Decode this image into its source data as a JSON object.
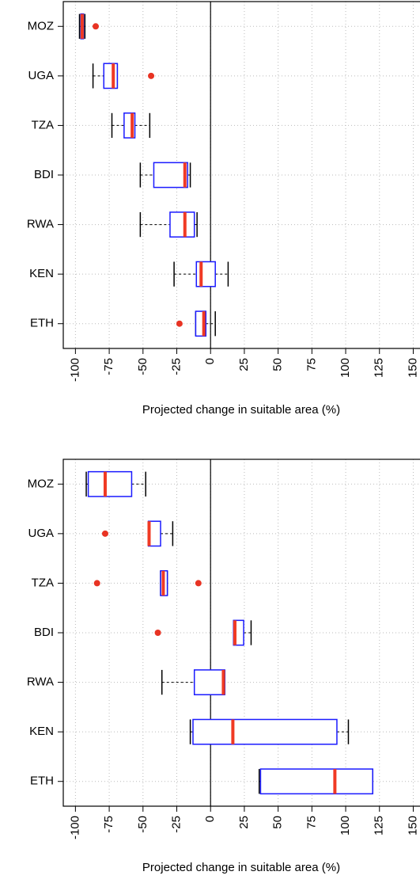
{
  "chart_data": [
    {
      "type": "boxplot",
      "x_label": "Projected change in suitable area (%)",
      "categories": [
        "MOZ",
        "UGA",
        "TZA",
        "BDI",
        "RWA",
        "KEN",
        "ETH"
      ],
      "low": [
        -97,
        -87,
        -73,
        -52,
        -52,
        -27,
        -11
      ],
      "q1": [
        -96,
        -79,
        -64,
        -42,
        -30,
        -10.5,
        -11
      ],
      "median": [
        -95,
        -72,
        -58,
        -19,
        -19,
        -7,
        -5
      ],
      "q3": [
        -94,
        -69,
        -56,
        -17,
        -12,
        3.5,
        -3.5
      ],
      "high": [
        -93,
        -69,
        -45,
        -15,
        -10,
        13,
        3.5
      ],
      "outliers": [
        [
          -85
        ],
        [
          -44
        ],
        [],
        [],
        [],
        [],
        [
          -23
        ]
      ],
      "box_color": "#1a1aff",
      "median_color": "#f03a24",
      "outlier_color": "#e83323",
      "xlim": [
        -109,
        155
      ],
      "xticks": [
        -100,
        -75,
        -50,
        -25,
        0,
        25,
        50,
        75,
        100,
        125,
        150
      ],
      "grid": true
    },
    {
      "type": "boxplot",
      "x_label": "Projected change in suitable area (%)",
      "categories": [
        "MOZ",
        "UGA",
        "TZA",
        "BDI",
        "RWA",
        "KEN",
        "ETH"
      ],
      "low": [
        -92,
        -46,
        -37,
        17,
        -36,
        -15,
        36
      ],
      "q1": [
        -90.5,
        -46,
        -37,
        17,
        -12,
        -13,
        37
      ],
      "median": [
        -78,
        -45.5,
        -35,
        18,
        9.5,
        16.5,
        92
      ],
      "q3": [
        -58.4,
        -37,
        -32,
        24.5,
        10.5,
        93.5,
        120
      ],
      "high": [
        -48,
        -28,
        -32,
        30,
        10.5,
        102,
        120
      ],
      "outliers": [
        [],
        [
          -78
        ],
        [
          -84,
          -9
        ],
        [
          -39
        ],
        [],
        [],
        []
      ],
      "box_color": "#1a1aff",
      "median_color": "#f03a24",
      "outlier_color": "#e83323",
      "xlim": [
        -109,
        155
      ],
      "xticks": [
        -100,
        -75,
        -50,
        -25,
        0,
        25,
        50,
        75,
        100,
        125,
        150
      ],
      "grid": true
    }
  ]
}
